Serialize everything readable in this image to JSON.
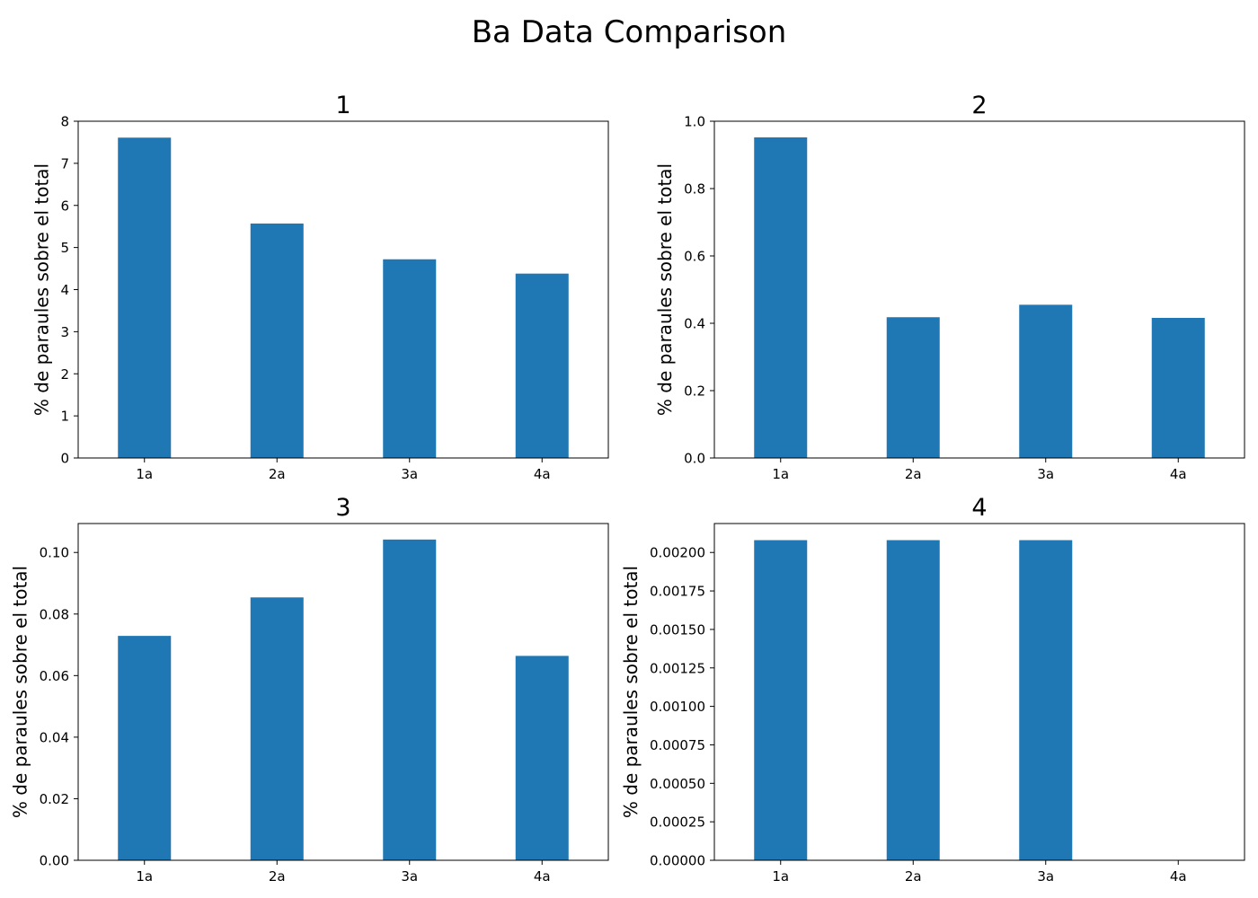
{
  "figure": {
    "title": "Ba Data Comparison"
  },
  "colors": {
    "bar": "#1f77b4",
    "axis": "#000000",
    "background": "#ffffff"
  },
  "chart_data": [
    {
      "type": "bar",
      "title": "1",
      "xlabel": "",
      "ylabel": "% de paraules sobre el total",
      "categories": [
        "1a",
        "2a",
        "3a",
        "4a"
      ],
      "values": [
        7.61,
        5.57,
        4.72,
        4.38
      ],
      "ylim": [
        0,
        8
      ],
      "yticks": [
        0,
        1,
        2,
        3,
        4,
        5,
        6,
        7,
        8
      ],
      "ytick_labels": [
        "0",
        "1",
        "2",
        "3",
        "4",
        "5",
        "6",
        "7",
        "8"
      ],
      "grid": false
    },
    {
      "type": "bar",
      "title": "2",
      "xlabel": "",
      "ylabel": "% de paraules sobre el total",
      "categories": [
        "1a",
        "2a",
        "3a",
        "4a"
      ],
      "values": [
        0.952,
        0.418,
        0.455,
        0.416
      ],
      "ylim": [
        0,
        1.0
      ],
      "yticks": [
        0.0,
        0.2,
        0.4,
        0.6,
        0.8,
        1.0
      ],
      "ytick_labels": [
        "0.0",
        "0.2",
        "0.4",
        "0.6",
        "0.8",
        "1.0"
      ],
      "grid": false
    },
    {
      "type": "bar",
      "title": "3",
      "xlabel": "",
      "ylabel": "% de paraules sobre el total",
      "categories": [
        "1a",
        "2a",
        "3a",
        "4a"
      ],
      "values": [
        0.0729,
        0.0854,
        0.1042,
        0.0664
      ],
      "ylim": [
        0,
        0.1094
      ],
      "yticks": [
        0.0,
        0.02,
        0.04,
        0.06,
        0.08,
        0.1
      ],
      "ytick_labels": [
        "0.00",
        "0.02",
        "0.04",
        "0.06",
        "0.08",
        "0.10"
      ],
      "grid": false
    },
    {
      "type": "bar",
      "title": "4",
      "xlabel": "",
      "ylabel": "% de paraules sobre el total",
      "categories": [
        "1a",
        "2a",
        "3a",
        "4a"
      ],
      "values": [
        0.00208,
        0.00208,
        0.00208,
        0
      ],
      "ylim": [
        0,
        0.002188
      ],
      "yticks": [
        0,
        0.00025,
        0.0005,
        0.00075,
        0.001,
        0.00125,
        0.0015,
        0.00175,
        0.002
      ],
      "ytick_labels": [
        "0.00000",
        "0.00025",
        "0.00050",
        "0.00075",
        "0.00100",
        "0.00125",
        "0.00150",
        "0.00175",
        "0.00200"
      ],
      "grid": false
    }
  ]
}
